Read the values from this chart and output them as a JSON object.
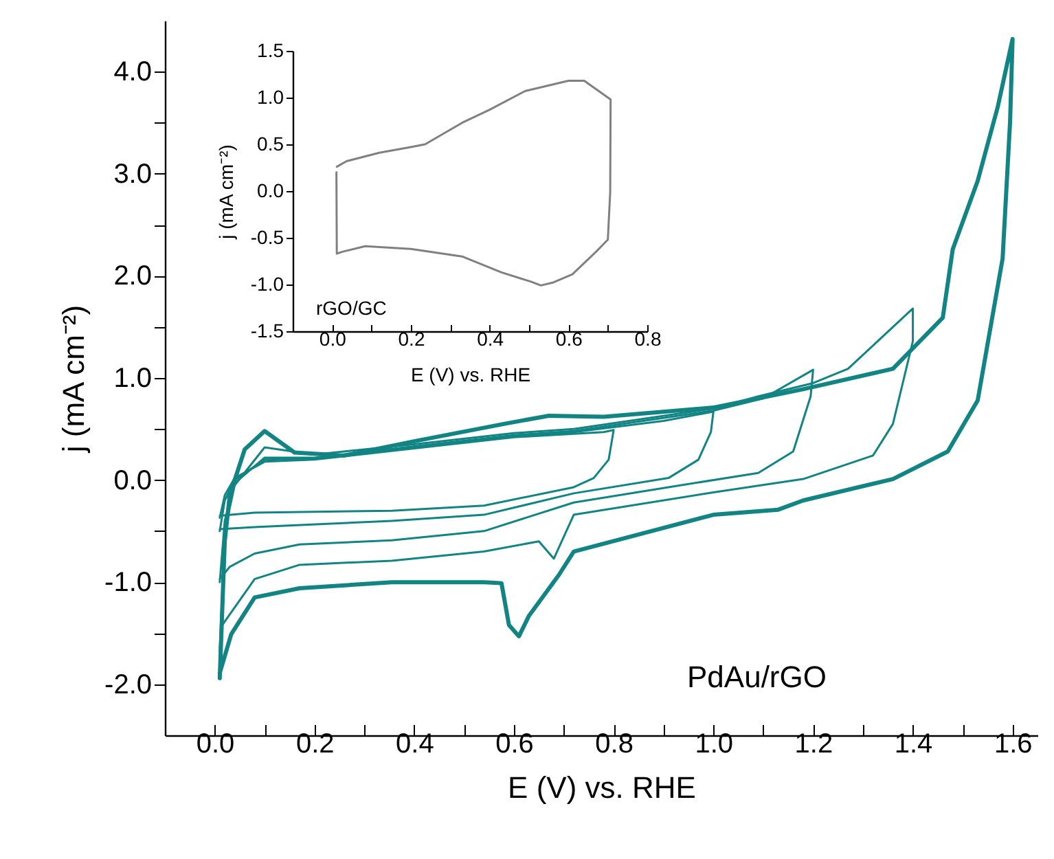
{
  "chart_data": [
    {
      "type": "line",
      "xlabel": "E (V) vs. RHE",
      "ylabel": "j (mA cm⁻²)",
      "annotations": [
        "PdAu/rGO"
      ],
      "xlim": [
        -0.1,
        1.65
      ],
      "ylim": [
        -2.5,
        4.5
      ],
      "xticks": [
        {
          "value": 0,
          "label": "0.0"
        },
        {
          "value": 0.1,
          "label": null
        },
        {
          "value": 0.2,
          "label": "0.2"
        },
        {
          "value": 0.3,
          "label": null
        },
        {
          "value": 0.4,
          "label": "0.4"
        },
        {
          "value": 0.5,
          "label": null
        },
        {
          "value": 0.6,
          "label": "0.6"
        },
        {
          "value": 0.7,
          "label": null
        },
        {
          "value": 0.8,
          "label": "0.8"
        },
        {
          "value": 0.9,
          "label": null
        },
        {
          "value": 1,
          "label": "1.0"
        },
        {
          "value": 1.1,
          "label": null
        },
        {
          "value": 1.2,
          "label": "1.2"
        },
        {
          "value": 1.3,
          "label": null
        },
        {
          "value": 1.4,
          "label": "1.4"
        },
        {
          "value": 1.5,
          "label": null
        },
        {
          "value": 1.6,
          "label": "1.6"
        }
      ],
      "yticks": [
        {
          "value": -2,
          "label": "-2.0"
        },
        {
          "value": -1.5,
          "label": null
        },
        {
          "value": -1,
          "label": "-1.0"
        },
        {
          "value": -0.5,
          "label": null
        },
        {
          "value": 0,
          "label": "0.0"
        },
        {
          "value": 0.5,
          "label": null
        },
        {
          "value": 1,
          "label": "1.0"
        },
        {
          "value": 1.5,
          "label": null
        },
        {
          "value": 2,
          "label": "2.0"
        },
        {
          "value": 2.5,
          "label": null
        },
        {
          "value": 3,
          "label": "3.0"
        },
        {
          "value": 3.5,
          "label": null
        },
        {
          "value": 4,
          "label": "4.0"
        }
      ],
      "grid": false,
      "series": [
        {
          "type": "line",
          "color": "#128484",
          "x": [
            0.01,
            0.02,
            0.03,
            0.06,
            0.1,
            0.16,
            0.26,
            0.4,
            0.58,
            0.67,
            0.78,
            1.0,
            1.18,
            1.36,
            1.46,
            1.48,
            1.53,
            1.57,
            1.6,
            1.595,
            1.58,
            1.53,
            1.47,
            1.36,
            1.18,
            1.13,
            1.0,
            0.72,
            0.69,
            0.63,
            0.61,
            0.59,
            0.575,
            0.54,
            0.355,
            0.17,
            0.08,
            0.033,
            0.01
          ],
          "values": [
            -1.94,
            -0.6,
            -0.15,
            0.3,
            0.48,
            0.27,
            0.24,
            0.38,
            0.55,
            0.63,
            0.62,
            0.71,
            0.89,
            1.09,
            1.59,
            2.26,
            2.93,
            3.65,
            4.32,
            3.51,
            2.17,
            0.78,
            0.28,
            0.01,
            -0.2,
            -0.29,
            -0.34,
            -0.7,
            -0.93,
            -1.33,
            -1.53,
            -1.42,
            -1.01,
            -1.0,
            -1.0,
            -1.06,
            -1.15,
            -1.51,
            -1.89
          ]
        },
        {
          "type": "line",
          "color": "#128484",
          "x": [
            0.01,
            0.02,
            0.04,
            0.1,
            0.2,
            0.4,
            0.6,
            0.72,
            1.0,
            1.09,
            1.2,
            1.27,
            1.4,
            1.4,
            1.36,
            1.32,
            1.18,
            1.0,
            0.72,
            0.68,
            0.65,
            0.54,
            0.355,
            0.17,
            0.08,
            0.015,
            0.01
          ],
          "values": [
            -1.68,
            -0.5,
            -0.05,
            0.32,
            0.25,
            0.35,
            0.46,
            0.5,
            0.7,
            0.82,
            0.95,
            1.09,
            1.68,
            1.36,
            0.55,
            0.24,
            0.01,
            -0.12,
            -0.34,
            -0.77,
            -0.6,
            -0.7,
            -0.79,
            -0.83,
            -0.97,
            -1.42,
            -1.64
          ]
        },
        {
          "type": "line",
          "color": "#128484",
          "x": [
            0.01,
            0.02,
            0.04,
            0.1,
            0.2,
            0.4,
            0.6,
            0.72,
            1.0,
            1.1,
            1.2,
            1.195,
            1.16,
            1.09,
            0.91,
            0.72,
            0.54,
            0.355,
            0.17,
            0.08,
            0.03,
            0.01
          ],
          "values": [
            -1.0,
            -0.4,
            -0.03,
            0.22,
            0.22,
            0.33,
            0.44,
            0.48,
            0.68,
            0.8,
            1.08,
            0.82,
            0.28,
            0.07,
            -0.07,
            -0.22,
            -0.5,
            -0.59,
            -0.63,
            -0.72,
            -0.85,
            -0.97
          ]
        },
        {
          "type": "line",
          "color": "#128484",
          "x": [
            0.01,
            0.02,
            0.04,
            0.1,
            0.2,
            0.4,
            0.6,
            0.72,
            0.9,
            1.0,
            0.995,
            0.97,
            0.91,
            0.72,
            0.54,
            0.355,
            0.08,
            0.01
          ],
          "values": [
            -0.5,
            -0.2,
            0.0,
            0.2,
            0.21,
            0.32,
            0.43,
            0.47,
            0.58,
            0.67,
            0.47,
            0.2,
            0.02,
            -0.13,
            -0.34,
            -0.4,
            -0.46,
            -0.48
          ]
        },
        {
          "type": "line",
          "color": "#128484",
          "x": [
            0.01,
            0.02,
            0.04,
            0.1,
            0.2,
            0.4,
            0.6,
            0.78,
            0.8,
            0.79,
            0.76,
            0.72,
            0.54,
            0.355,
            0.08,
            0.01
          ],
          "values": [
            -0.37,
            -0.15,
            0.02,
            0.18,
            0.2,
            0.31,
            0.42,
            0.47,
            0.49,
            0.2,
            0.02,
            -0.07,
            -0.25,
            -0.3,
            -0.32,
            -0.35
          ]
        }
      ]
    },
    {
      "type": "line",
      "xlabel": "E (V) vs. RHE",
      "ylabel": "j (mA cm⁻²)",
      "annotations": [
        "rGO/GC"
      ],
      "xlim": [
        -0.1,
        0.8
      ],
      "ylim": [
        -1.5,
        1.5
      ],
      "xticks": [
        {
          "value": 0,
          "label": "0.0"
        },
        {
          "value": 0.1,
          "label": null
        },
        {
          "value": 0.2,
          "label": "0.2"
        },
        {
          "value": 0.3,
          "label": null
        },
        {
          "value": 0.4,
          "label": "0.4"
        },
        {
          "value": 0.5,
          "label": null
        },
        {
          "value": 0.6,
          "label": "0.6"
        },
        {
          "value": 0.7,
          "label": null
        },
        {
          "value": 0.8,
          "label": "0.8"
        }
      ],
      "yticks": [
        {
          "value": -1.5,
          "label": "-1.5"
        },
        {
          "value": -1,
          "label": "-1.0"
        },
        {
          "value": -0.5,
          "label": "-0.5"
        },
        {
          "value": 0,
          "label": "0.0"
        },
        {
          "value": 0.5,
          "label": "0.5"
        },
        {
          "value": 1,
          "label": "1.0"
        },
        {
          "value": 1.5,
          "label": "1.5"
        }
      ],
      "grid": false,
      "series": [
        {
          "type": "line",
          "color": "#808080",
          "x": [
            0.012,
            0.037,
            0.12,
            0.2,
            0.236,
            0.33,
            0.4,
            0.49,
            0.6,
            0.64,
            0.707,
            0.706,
            0.7,
            0.67,
            0.61,
            0.56,
            0.53,
            0.505,
            0.43,
            0.33,
            0.2,
            0.084,
            0.026,
            0.012,
            0.011
          ],
          "values": [
            0.26,
            0.32,
            0.41,
            0.47,
            0.5,
            0.73,
            0.87,
            1.07,
            1.18,
            1.18,
            0.98,
            -0.01,
            -0.52,
            -0.65,
            -0.89,
            -0.98,
            -1.01,
            -0.97,
            -0.87,
            -0.7,
            -0.62,
            -0.59,
            -0.65,
            -0.67,
            0.2
          ]
        }
      ]
    }
  ]
}
